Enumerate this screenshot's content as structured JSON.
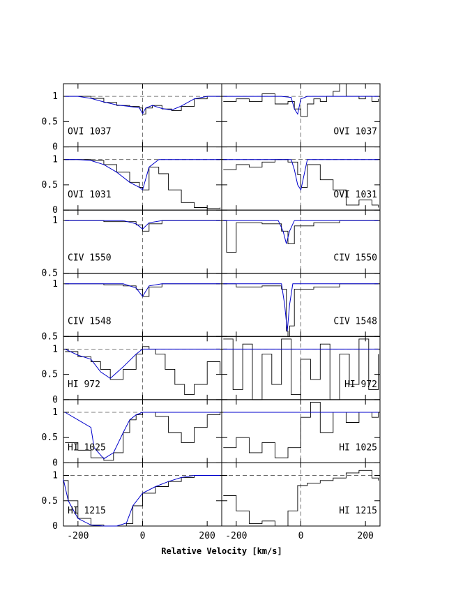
{
  "chart_data": {
    "type": "line",
    "title": "",
    "xlabel": "Relative Velocity [km/s]",
    "ylabel": "",
    "xlim": [
      -245,
      245
    ],
    "x_ticks": [
      -200,
      0,
      200
    ],
    "x_tick_labels": [
      "-200",
      "0",
      "200"
    ],
    "grid": false,
    "colors": {
      "data": "#000000",
      "model": "#0000cc",
      "reference": "#000000"
    },
    "panel_layout": {
      "rows": 7,
      "columns": 2,
      "left_column_has_y_labels": true
    },
    "rows": [
      {
        "id": "ovi1037",
        "ion": "OVI 1037",
        "ylim": [
          0,
          1.25
        ],
        "y_ticks": [
          0,
          0.5,
          1
        ],
        "y_tick_labels": [
          "0",
          "0.5",
          "1"
        ],
        "unity_dashed": true,
        "left": {
          "ion_label": "OVI  1037",
          "label_side": "left",
          "data": {
            "x": [
              -240,
              -200,
              -160,
              -120,
              -80,
              -40,
              -10,
              0,
              10,
              30,
              60,
              90,
              120,
              160,
              200,
              240
            ],
            "y": [
              1.0,
              1.0,
              0.96,
              0.88,
              0.82,
              0.8,
              0.77,
              0.65,
              0.77,
              0.82,
              0.75,
              0.72,
              0.8,
              0.95,
              1.0,
              1.0
            ]
          },
          "model": {
            "x": [
              -240,
              -200,
              -160,
              -120,
              -80,
              -40,
              -10,
              0,
              10,
              30,
              60,
              90,
              120,
              160,
              200,
              240
            ],
            "y": [
              1.0,
              1.0,
              0.96,
              0.89,
              0.83,
              0.8,
              0.77,
              0.66,
              0.77,
              0.82,
              0.76,
              0.73,
              0.81,
              0.95,
              1.0,
              1.0
            ]
          }
        },
        "right": {
          "ion_label": "OVI  1037",
          "label_side": "right",
          "data": {
            "x": [
              -240,
              -200,
              -160,
              -120,
              -80,
              -40,
              -20,
              0,
              20,
              40,
              60,
              80,
              100,
              120,
              140,
              160,
              180,
              200,
              220,
              240
            ],
            "y": [
              0.9,
              0.95,
              0.9,
              1.05,
              0.85,
              0.9,
              0.75,
              0.6,
              0.85,
              0.95,
              0.9,
              1.0,
              1.1,
              1.25,
              1.0,
              1.0,
              0.95,
              1.0,
              0.9,
              0.95
            ]
          },
          "model": {
            "x": [
              -240,
              -60,
              -30,
              -20,
              -10,
              0,
              20,
              240
            ],
            "y": [
              1.0,
              1.0,
              0.98,
              0.75,
              0.65,
              0.95,
              1.0,
              1.0
            ]
          }
        }
      },
      {
        "id": "ovi1031",
        "ion": "OVI 1031",
        "ylim": [
          0,
          1.25
        ],
        "y_ticks": [
          0,
          0.5,
          1
        ],
        "y_tick_labels": [
          "0",
          "0.5",
          "1"
        ],
        "unity_dashed": true,
        "left": {
          "ion_label": "OVI  1031",
          "label_side": "left",
          "data": {
            "x": [
              -240,
              -200,
              -160,
              -120,
              -80,
              -40,
              -10,
              0,
              20,
              50,
              80,
              120,
              160,
              200,
              240
            ],
            "y": [
              1.0,
              1.0,
              0.98,
              0.9,
              0.75,
              0.55,
              0.45,
              0.4,
              0.85,
              0.72,
              0.4,
              0.15,
              0.05,
              0.03,
              0.05
            ]
          },
          "model": {
            "x": [
              -240,
              -200,
              -160,
              -120,
              -80,
              -40,
              -10,
              0,
              20,
              50,
              100,
              240
            ],
            "y": [
              1.0,
              1.0,
              0.98,
              0.9,
              0.75,
              0.55,
              0.45,
              0.4,
              0.85,
              1.0,
              1.0,
              1.0
            ]
          }
        },
        "right": {
          "ion_label": "OVI  1031",
          "label_side": "right",
          "data": {
            "x": [
              -240,
              -200,
              -160,
              -120,
              -80,
              -40,
              -10,
              0,
              20,
              60,
              100,
              140,
              180,
              220,
              240
            ],
            "y": [
              0.8,
              0.9,
              0.85,
              0.95,
              1.0,
              0.95,
              0.7,
              0.45,
              0.9,
              0.6,
              0.4,
              0.1,
              0.2,
              0.1,
              0.05
            ]
          },
          "model": {
            "x": [
              -240,
              -30,
              -20,
              -10,
              0,
              20,
              240
            ],
            "y": [
              1.0,
              1.0,
              0.8,
              0.5,
              0.4,
              1.0,
              1.0
            ]
          }
        }
      },
      {
        "id": "civ1550",
        "ion": "CIV 1550",
        "ylim": [
          0.5,
          1.1
        ],
        "y_ticks": [
          0.5,
          1
        ],
        "y_tick_labels": [
          "0.5",
          "1"
        ],
        "unity_dashed": false,
        "left": {
          "ion_label": "CIV  1550",
          "label_side": "left",
          "data": {
            "x": [
              -240,
              -120,
              -60,
              -20,
              0,
              20,
              60,
              120,
              240
            ],
            "y": [
              1.0,
              0.99,
              0.99,
              0.96,
              0.9,
              0.97,
              1.0,
              1.0,
              1.0
            ]
          },
          "model": {
            "x": [
              -240,
              -60,
              -20,
              0,
              20,
              60,
              240
            ],
            "y": [
              1.0,
              1.0,
              0.97,
              0.92,
              0.98,
              1.0,
              1.0
            ]
          }
        },
        "right": {
          "ion_label": "CIV  1550",
          "label_side": "right",
          "data": {
            "x": [
              -240,
              -230,
              -200,
              -120,
              -60,
              -40,
              -20,
              0,
              40,
              120,
              240
            ],
            "y": [
              1.0,
              0.7,
              0.98,
              0.97,
              0.9,
              0.78,
              0.95,
              0.95,
              0.98,
              1.0,
              1.0
            ]
          },
          "model": {
            "x": [
              -240,
              -70,
              -55,
              -45,
              -35,
              -20,
              240
            ],
            "y": [
              1.0,
              1.0,
              0.9,
              0.78,
              0.9,
              1.0,
              1.0
            ]
          }
        }
      },
      {
        "id": "civ1548",
        "ion": "CIV 1548",
        "ylim": [
          0.5,
          1.1
        ],
        "y_ticks": [
          0.5,
          1
        ],
        "y_tick_labels": [
          "0.5",
          "1"
        ],
        "unity_dashed": false,
        "left": {
          "ion_label": "CIV  1548",
          "label_side": "left",
          "data": {
            "x": [
              -240,
              -120,
              -60,
              -20,
              0,
              20,
              60,
              120,
              240
            ],
            "y": [
              1.0,
              0.99,
              0.98,
              0.95,
              0.88,
              0.97,
              1.0,
              1.0,
              1.0
            ]
          },
          "model": {
            "x": [
              -240,
              -60,
              -20,
              0,
              20,
              60,
              240
            ],
            "y": [
              1.0,
              1.0,
              0.96,
              0.88,
              0.98,
              1.0,
              1.0
            ]
          }
        },
        "right": {
          "ion_label": "CIV  1548",
          "label_side": "right",
          "data": {
            "x": [
              -240,
              -200,
              -120,
              -60,
              -45,
              -40,
              -35,
              -20,
              40,
              120,
              240
            ],
            "y": [
              1.0,
              0.97,
              0.98,
              0.95,
              0.55,
              0.5,
              0.6,
              0.95,
              0.97,
              1.0,
              1.0
            ]
          },
          "model": {
            "x": [
              -240,
              -60,
              -50,
              -42,
              -35,
              -25,
              240
            ],
            "y": [
              1.0,
              1.0,
              0.8,
              0.55,
              0.8,
              1.0,
              1.0
            ]
          }
        }
      },
      {
        "id": "hi972",
        "ion": "HI 972",
        "ylim": [
          0,
          1.25
        ],
        "y_ticks": [
          0,
          0.5,
          1
        ],
        "y_tick_labels": [
          "0",
          "0.5",
          "1"
        ],
        "unity_dashed": true,
        "left": {
          "ion_label": "HI  972",
          "label_side": "left",
          "data": {
            "x": [
              -240,
              -200,
              -160,
              -130,
              -100,
              -60,
              -20,
              0,
              20,
              40,
              70,
              100,
              130,
              160,
              200,
              240
            ],
            "y": [
              0.95,
              0.85,
              0.75,
              0.6,
              0.4,
              0.6,
              0.9,
              1.05,
              1.0,
              0.9,
              0.6,
              0.3,
              0.1,
              0.3,
              0.75,
              0.5
            ]
          },
          "model": {
            "x": [
              -240,
              -200,
              -160,
              -130,
              -100,
              -60,
              -20,
              0,
              60,
              240
            ],
            "y": [
              1.0,
              0.88,
              0.8,
              0.55,
              0.42,
              0.65,
              0.9,
              1.0,
              1.0,
              1.0
            ]
          }
        },
        "right": {
          "ion_label": "HI  972",
          "label_side": "right",
          "data": {
            "x": [
              -240,
              -210,
              -180,
              -150,
              -120,
              -90,
              -60,
              -30,
              0,
              30,
              60,
              90,
              120,
              150,
              180,
              210,
              240
            ],
            "y": [
              1.2,
              0.2,
              1.1,
              0.0,
              0.9,
              0.3,
              1.2,
              0.1,
              0.8,
              0.4,
              1.1,
              0.0,
              0.9,
              0.3,
              1.2,
              0.2,
              0.9
            ]
          },
          "model": {
            "x": [
              -240,
              240
            ],
            "y": [
              1.0,
              1.0
            ]
          }
        }
      },
      {
        "id": "hi1025",
        "ion": "HI 1025",
        "ylim": [
          0,
          1.25
        ],
        "y_ticks": [
          0,
          0.5,
          1
        ],
        "y_tick_labels": [
          "0",
          "0.5",
          "1"
        ],
        "unity_dashed": true,
        "left": {
          "ion_label": "HI  1025",
          "label_side": "left",
          "data": {
            "x": [
              -240,
              -200,
              -160,
              -120,
              -90,
              -60,
              -40,
              -20,
              0,
              40,
              80,
              120,
              160,
              200,
              240
            ],
            "y": [
              0.4,
              0.25,
              0.1,
              0.05,
              0.2,
              0.6,
              0.85,
              0.95,
              1.0,
              0.92,
              0.6,
              0.4,
              0.7,
              0.95,
              1.0
            ]
          },
          "model": {
            "x": [
              -240,
              -200,
              -160,
              -150,
              -120,
              -90,
              -60,
              -40,
              -20,
              0,
              60,
              240
            ],
            "y": [
              1.0,
              0.85,
              0.7,
              0.3,
              0.08,
              0.2,
              0.6,
              0.85,
              0.95,
              1.0,
              1.0,
              1.0
            ]
          }
        },
        "right": {
          "ion_label": "HI  1025",
          "label_side": "right",
          "data": {
            "x": [
              -240,
              -200,
              -160,
              -120,
              -80,
              -40,
              0,
              30,
              60,
              100,
              140,
              180,
              220,
              240
            ],
            "y": [
              0.3,
              0.5,
              0.2,
              0.4,
              0.1,
              0.3,
              0.9,
              1.2,
              0.6,
              1.0,
              0.8,
              1.0,
              0.9,
              1.0
            ]
          },
          "model": {
            "x": [
              -240,
              240
            ],
            "y": [
              1.0,
              1.0
            ]
          }
        }
      },
      {
        "id": "hi1215",
        "ion": "HI 1215",
        "ylim": [
          0,
          1.25
        ],
        "y_ticks": [
          0,
          0.5,
          1
        ],
        "y_tick_labels": [
          "0",
          "0.5",
          "1"
        ],
        "unity_dashed": true,
        "left": {
          "ion_label": "HI  1215",
          "label_side": "left",
          "data": {
            "x": [
              -245,
              -230,
              -200,
              -160,
              -120,
              -80,
              -50,
              -30,
              0,
              40,
              80,
              120,
              160,
              200,
              240
            ],
            "y": [
              0.9,
              0.5,
              0.15,
              0.02,
              0.0,
              0.0,
              0.05,
              0.4,
              0.65,
              0.78,
              0.88,
              0.96,
              1.0,
              1.0,
              1.0
            ]
          },
          "model": {
            "x": [
              -245,
              -230,
              -200,
              -160,
              -120,
              -80,
              -50,
              -30,
              0,
              40,
              80,
              120,
              160,
              200,
              240
            ],
            "y": [
              0.92,
              0.5,
              0.15,
              0.02,
              0.0,
              0.0,
              0.06,
              0.4,
              0.65,
              0.78,
              0.88,
              0.96,
              1.0,
              1.0,
              1.0
            ]
          }
        },
        "right": {
          "ion_label": "HI  1215",
          "label_side": "right",
          "data": {
            "x": [
              -240,
              -200,
              -160,
              -120,
              -80,
              -40,
              -10,
              20,
              60,
              100,
              140,
              180,
              220,
              240
            ],
            "y": [
              0.6,
              0.3,
              0.05,
              0.1,
              0.0,
              0.3,
              0.8,
              0.85,
              0.9,
              0.95,
              1.05,
              1.1,
              0.95,
              0.9
            ]
          },
          "model": null
        }
      }
    ]
  }
}
